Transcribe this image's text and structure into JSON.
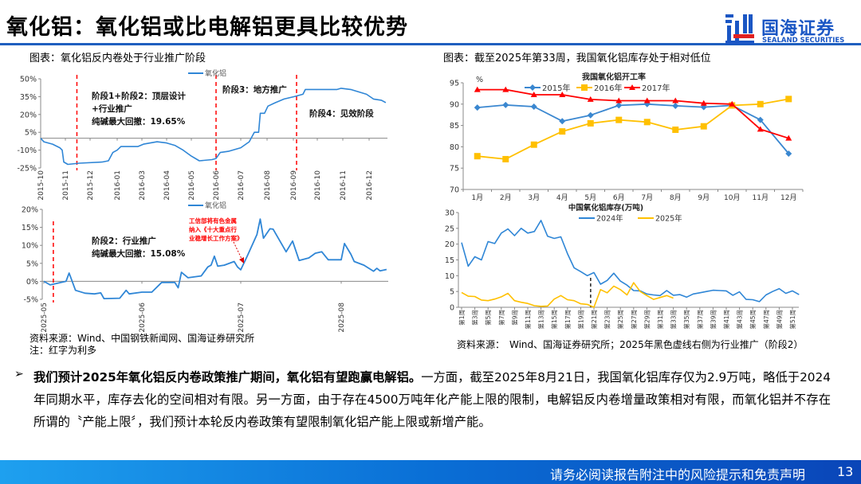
{
  "header": {
    "title": "氧化铝：氧化铝或比电解铝更具比较优势"
  },
  "logo": {
    "cn": "国海证券",
    "en": "SEALAND SECURITIES",
    "colors": {
      "blue": "#1a56c4",
      "red": "#e02020"
    }
  },
  "captions": {
    "left": "图表：氧化铝反内卷处于行业推广阶段",
    "right": "图表：截至2025年第33周，我国氧化铝库存处于相对低位"
  },
  "sources": {
    "left": "资料来源：Wind、中国钢铁新闻网、国海证券研究所",
    "left_note": "注：红字为利多",
    "right": "资料来源：　Wind、国海证券研究所；2025年黑色虚线右侧为行业推广（阶段2）"
  },
  "body": {
    "bullet_icon": "arrow-bullet-icon",
    "bold": "我们预计2025年氧化铝反内卷政策推广期间，氧化铝有望跑赢电解铝。",
    "text": "一方面，截至2025年8月21日，我国氧化铝库存仅为2.9万吨，略低于2024年同期水平，库存去化的空间相对有限。另一方面，由于存在4500万吨年化产能上限的限制，电解铝反内卷增量政策相对有限，而氧化铝并不存在所谓的〝产能上限〞，我们预计本轮反内卷政策有望限制氧化铝产能上限或新增产能。"
  },
  "footer": {
    "disclaimer": "请务必阅读报告附注中的风险提示和免责声明",
    "page": "13"
  },
  "chart_data": [
    {
      "type": "line",
      "legend": [
        "氧化铝"
      ],
      "ylim": [
        -25,
        50
      ],
      "yticks": [
        "50%",
        "35%",
        "20%",
        "5%",
        "-10%",
        "-25%"
      ],
      "ytick_values": [
        50,
        35,
        20,
        5,
        -10,
        -25
      ],
      "xticks": [
        "2015-10",
        "2015-11",
        "2015-12",
        "2016-01",
        "2016-03",
        "2016-04",
        "2016-05",
        "2016-06",
        "2016-07",
        "2016-08",
        "2016-09",
        "2016-10",
        "2016-11",
        "2016-12"
      ],
      "series": [
        {
          "name": "氧化铝",
          "color": "#2f86d6",
          "points": [
            [
              "2015-10-01",
              0
            ],
            [
              "2015-10-05",
              -3
            ],
            [
              "2015-10-16",
              -5
            ],
            [
              "2015-10-25",
              -8
            ],
            [
              "2015-10-28",
              -10
            ],
            [
              "2015-10-30",
              -20
            ],
            [
              "2015-11-04",
              -22
            ],
            [
              "2015-11-18",
              -21
            ],
            [
              "2015-12-15",
              -20
            ],
            [
              "2015-12-22",
              -19
            ],
            [
              "2015-12-27",
              -12
            ],
            [
              "2016-01-01",
              -10
            ],
            [
              "2016-01-10",
              -7
            ],
            [
              "2016-02-20",
              -7
            ],
            [
              "2016-03-03",
              -5
            ],
            [
              "2016-03-20",
              -3
            ],
            [
              "2016-04-01",
              -4
            ],
            [
              "2016-04-11",
              -6
            ],
            [
              "2016-04-21",
              -10
            ],
            [
              "2016-05-01",
              -15
            ],
            [
              "2016-05-11",
              -19
            ],
            [
              "2016-05-27",
              -18
            ],
            [
              "2016-06-01",
              -17
            ],
            [
              "2016-06-06",
              -12
            ],
            [
              "2016-06-16",
              -11
            ],
            [
              "2016-07-01",
              -8
            ],
            [
              "2016-07-11",
              -3
            ],
            [
              "2016-07-17",
              5
            ],
            [
              "2016-07-22",
              5
            ],
            [
              "2016-07-24",
              21
            ],
            [
              "2016-07-29",
              21
            ],
            [
              "2016-08-02",
              27
            ],
            [
              "2016-08-11",
              30
            ],
            [
              "2016-08-21",
              33
            ],
            [
              "2016-09-02",
              35
            ],
            [
              "2016-09-13",
              37
            ],
            [
              "2016-09-16",
              41
            ],
            [
              "2016-10-02",
              41
            ],
            [
              "2016-10-25",
              41
            ],
            [
              "2016-10-30",
              42
            ],
            [
              "2016-11-10",
              41
            ],
            [
              "2016-11-19",
              39
            ],
            [
              "2016-11-28",
              37
            ],
            [
              "2016-12-06",
              33
            ],
            [
              "2016-12-15",
              32
            ],
            [
              "2016-12-20",
              30
            ]
          ]
        }
      ],
      "marker_lines": [
        "2015-11-15",
        "2016-06-01",
        "2016-09-05"
      ],
      "annotations": [
        "阶段1+阶段2：顶层设计",
        "+行业推广",
        "纯碱最大回撤：19.65%",
        "阶段3：地方推广",
        "阶段4：见效阶段"
      ]
    },
    {
      "type": "line",
      "legend": [
        "氧化铝"
      ],
      "ylim": [
        -5,
        20
      ],
      "yticks": [
        "20%",
        "15%",
        "10%",
        "5%",
        "0%",
        "-5%"
      ],
      "ytick_values": [
        20,
        15,
        10,
        5,
        0,
        -5
      ],
      "xticks": [
        "2025-05",
        "2025-06",
        "2025-07",
        "2025-08"
      ],
      "series": [
        {
          "name": "氧化铝",
          "color": "#2f86d6",
          "points": [
            [
              "2025-05-01",
              0
            ],
            [
              "2025-05-03",
              -1
            ],
            [
              "2025-05-08",
              0
            ],
            [
              "2025-05-09",
              2.3
            ],
            [
              "2025-05-11",
              -2.5
            ],
            [
              "2025-05-14",
              -3.3
            ],
            [
              "2025-05-17",
              -3.5
            ],
            [
              "2025-05-19",
              -3.2
            ],
            [
              "2025-05-20",
              -4.8
            ],
            [
              "2025-05-25",
              -4.7
            ],
            [
              "2025-05-27",
              -2.5
            ],
            [
              "2025-05-28",
              -3.5
            ],
            [
              "2025-06-01",
              -3
            ],
            [
              "2025-06-04",
              -3
            ],
            [
              "2025-06-07",
              -0.3
            ],
            [
              "2025-06-11",
              -0.3
            ],
            [
              "2025-06-12",
              -1.8
            ],
            [
              "2025-06-13",
              2.5
            ],
            [
              "2025-06-15",
              1
            ],
            [
              "2025-06-19",
              1.5
            ],
            [
              "2025-06-21",
              4
            ],
            [
              "2025-06-22",
              4.5
            ],
            [
              "2025-06-23",
              7
            ],
            [
              "2025-06-24",
              4.2
            ],
            [
              "2025-06-26",
              4.5
            ],
            [
              "2025-06-29",
              5.5
            ],
            [
              "2025-06-30",
              4
            ],
            [
              "2025-07-01",
              3.2
            ],
            [
              "2025-07-03",
              7
            ],
            [
              "2025-07-06",
              13
            ],
            [
              "2025-07-07",
              17.3
            ],
            [
              "2025-07-08",
              12
            ],
            [
              "2025-07-10",
              14.6
            ],
            [
              "2025-07-11",
              14.5
            ],
            [
              "2025-07-15",
              8.2
            ],
            [
              "2025-07-17",
              11.2
            ],
            [
              "2025-07-19",
              5.8
            ],
            [
              "2025-07-22",
              6.5
            ],
            [
              "2025-07-24",
              7.8
            ],
            [
              "2025-07-26",
              8.2
            ],
            [
              "2025-07-28",
              6
            ],
            [
              "2025-08-01",
              6
            ],
            [
              "2025-08-02",
              10.5
            ],
            [
              "2025-08-04",
              7.5
            ],
            [
              "2025-08-05",
              5.5
            ],
            [
              "2025-08-08",
              4.5
            ],
            [
              "2025-08-11",
              2.8
            ],
            [
              "2025-08-12",
              3.6
            ],
            [
              "2025-08-13",
              2.9
            ],
            [
              "2025-08-15",
              3.3
            ]
          ]
        }
      ],
      "marker_lines": [
        "2025-05-04"
      ],
      "annotations": [
        "阶段2：行业推广",
        "纯碱最大回撤：15.08%"
      ],
      "red_annotation": [
        "工信部将有色金属",
        "纳入《十大重点行",
        "业稳增长工作方案》"
      ]
    },
    {
      "type": "line",
      "title": "我国氧化铝开工率",
      "unit": "%",
      "ylim": [
        70,
        95
      ],
      "yticks": [
        "95",
        "90",
        "85",
        "80",
        "75",
        "70"
      ],
      "ytick_values": [
        95,
        90,
        85,
        80,
        75,
        70
      ],
      "categories": [
        "1月",
        "2月",
        "3月",
        "4月",
        "5月",
        "6月",
        "7月",
        "8月",
        "9月",
        "10月",
        "11月",
        "12月"
      ],
      "series": [
        {
          "name": "2015年",
          "color": "#3a87d0",
          "marker": "diamond",
          "values": [
            89.2,
            89.8,
            89.4,
            86.0,
            87.4,
            89.7,
            90.0,
            89.6,
            89.3,
            89.7,
            86.3,
            78.4
          ]
        },
        {
          "name": "2016年",
          "color": "#ffc000",
          "marker": "square",
          "values": [
            77.8,
            77.1,
            80.5,
            83.6,
            85.5,
            86.3,
            85.8,
            84.0,
            84.8,
            89.7,
            90.0,
            91.2
          ]
        },
        {
          "name": "2017年",
          "color": "#ff0000",
          "marker": "triangle",
          "values": [
            93.4,
            93.4,
            92.2,
            92.2,
            91.1,
            90.8,
            90.8,
            90.8,
            90.2,
            90.0,
            84.1,
            82.0
          ]
        }
      ]
    },
    {
      "type": "line",
      "title": "中国氧化铝库存(万吨)",
      "ylim": [
        0,
        30
      ],
      "yticks": [
        "30",
        "25",
        "20",
        "15",
        "10",
        "5",
        "0"
      ],
      "ytick_values": [
        30,
        25,
        20,
        15,
        10,
        5,
        0
      ],
      "xticks": [
        "第1周",
        "第3周",
        "第5周",
        "第7周",
        "第9周",
        "第11周",
        "第13周",
        "第15周",
        "第17周",
        "第19周",
        "第21周",
        "第23周",
        "第25周",
        "第27周",
        "第29周",
        "第31周",
        "第33周",
        "第35周",
        "第37周",
        "第39周",
        "第41周",
        "第43周",
        "第45周",
        "第47周",
        "第49周",
        "第51周"
      ],
      "series": [
        {
          "name": "2024年",
          "color": "#2f86d6",
          "values": [
            20.5,
            13,
            16,
            15,
            20.8,
            20.2,
            23.5,
            24.8,
            22.7,
            25,
            23.5,
            24,
            27.5,
            22.5,
            21.8,
            22.3,
            17,
            12.5,
            11.3,
            10,
            11,
            7.3,
            8.5,
            10.8,
            8.3,
            7,
            5.3,
            5.2,
            4.2,
            3.9,
            3.7,
            5.3,
            3.8,
            4,
            3.2,
            4.2,
            4.6,
            5,
            5.4,
            5.3,
            5.2,
            3.8,
            4.9,
            2.5,
            2.4,
            1.8,
            3.9,
            5.0,
            5.9,
            4.4,
            5.2,
            4.0
          ]
        },
        {
          "name": "2025年",
          "color": "#ffc000",
          "values": [
            4.7,
            3.5,
            3.4,
            2.3,
            2.1,
            2.6,
            3.3,
            4.4,
            2.1,
            1.6,
            1.2,
            0.5,
            0.3,
            0.4,
            2.6,
            3.7,
            2.4,
            2.1,
            1.1,
            0.9,
            0,
            5.6,
            4.6,
            6.7,
            5.6,
            3.9,
            7.8,
            5.0,
            3.7,
            2.5,
            3.1,
            3.7,
            2.9
          ]
        }
      ],
      "marker_week": 20.5
    }
  ]
}
